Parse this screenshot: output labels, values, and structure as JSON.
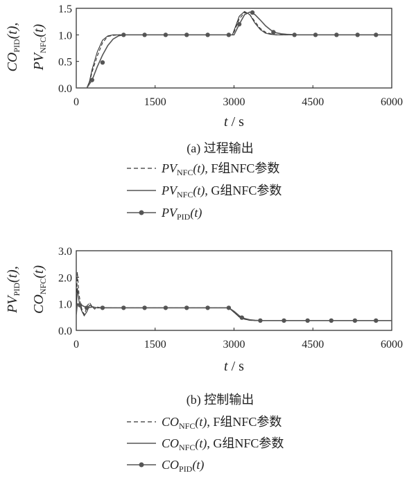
{
  "chart_data": [
    {
      "type": "line",
      "caption": "(a) 过程输出",
      "ylabel": {
        "line1": {
          "main": "CO",
          "sub": "PID",
          "arg": "(t),"
        },
        "line2": {
          "main": "PV",
          "sub": "NFC",
          "arg": "(t)"
        }
      },
      "xlabel": {
        "var": "t",
        "unit": " / s"
      },
      "xlim": [
        0,
        6000
      ],
      "ylim": [
        0,
        1.5
      ],
      "xticks": [
        "0",
        "1500",
        "3000",
        "4500",
        "6000"
      ],
      "yticks": [
        "0.0",
        "0.5",
        "1.0",
        "1.5"
      ],
      "series": [
        {
          "name": {
            "main": "PV",
            "sub": "NFC",
            "arg": "(t)",
            "rest": ", F组NFC参数"
          },
          "style": "dashed",
          "x": [
            0,
            200,
            250,
            300,
            400,
            500,
            600,
            700,
            800,
            900,
            1000,
            2970,
            3000,
            3100,
            3200,
            3300,
            3400,
            3500,
            3600,
            3700,
            3800,
            3900,
            4000,
            6000
          ],
          "y": [
            0,
            0,
            0.1,
            0.3,
            0.6,
            0.85,
            0.97,
            0.99,
            1.0,
            1.0,
            1.0,
            1.0,
            1.05,
            1.3,
            1.42,
            1.38,
            1.25,
            1.12,
            1.05,
            1.02,
            1.0,
            1.0,
            1.0,
            1.0
          ]
        },
        {
          "name": {
            "main": "PV",
            "sub": "NFC",
            "arg": "(t)",
            "rest": ", G组NFC参数"
          },
          "style": "solid",
          "x": [
            0,
            200,
            250,
            300,
            400,
            500,
            600,
            700,
            800,
            900,
            1000,
            2970,
            3000,
            3100,
            3200,
            3300,
            3400,
            3500,
            3600,
            3700,
            3800,
            3900,
            4000,
            6000
          ],
          "y": [
            0,
            0,
            0.12,
            0.35,
            0.68,
            0.9,
            0.98,
            1.0,
            1.0,
            1.0,
            1.0,
            1.0,
            1.08,
            1.35,
            1.44,
            1.38,
            1.22,
            1.1,
            1.03,
            1.01,
            1.0,
            1.0,
            1.0,
            1.0
          ]
        },
        {
          "name": {
            "main": "PV",
            "sub": "PID",
            "arg": "(t)",
            "rest": ""
          },
          "style": "marker",
          "x": [
            0,
            200,
            300,
            400,
            500,
            600,
            700,
            800,
            900,
            1300,
            1700,
            2100,
            2500,
            2900,
            2970,
            3000,
            3100,
            3200,
            3300,
            3400,
            3500,
            3600,
            3700,
            3800,
            3900,
            4000,
            4200,
            6000
          ],
          "y": [
            0,
            0,
            0.15,
            0.4,
            0.62,
            0.8,
            0.92,
            0.98,
            1.0,
            1.0,
            1.0,
            1.0,
            1.0,
            1.0,
            1.0,
            1.0,
            1.2,
            1.38,
            1.43,
            1.38,
            1.28,
            1.17,
            1.09,
            1.04,
            1.02,
            1.01,
            1.0,
            1.0
          ],
          "markers_x": [
            300,
            500,
            900,
            1300,
            1700,
            2100,
            2500,
            2900,
            3100,
            3350,
            3750,
            4150,
            4550,
            4950,
            5350,
            5700
          ],
          "markers_y": [
            0.15,
            0.48,
            1.0,
            1.0,
            1.0,
            1.0,
            1.0,
            1.0,
            1.2,
            1.42,
            1.05,
            1.0,
            1.0,
            1.0,
            1.0,
            1.0
          ]
        }
      ]
    },
    {
      "type": "line",
      "caption": "(b) 控制输出",
      "ylabel": {
        "line1": {
          "main": "PV",
          "sub": "PID",
          "arg": "(t),"
        },
        "line2": {
          "main": "CO",
          "sub": "NFC",
          "arg": "(t)"
        }
      },
      "xlabel": {
        "var": "t",
        "unit": " / s"
      },
      "xlim": [
        0,
        6000
      ],
      "ylim": [
        0,
        3.0
      ],
      "xticks": [
        "0",
        "1500",
        "3000",
        "4500",
        "6000"
      ],
      "yticks": [
        "0.0",
        "1.0",
        "2.0",
        "3.0"
      ],
      "series": [
        {
          "name": {
            "main": "CO",
            "sub": "NFC",
            "arg": "(t)",
            "rest": ", F组NFC参数"
          },
          "style": "dashed",
          "x": [
            0,
            20,
            50,
            80,
            120,
            160,
            200,
            250,
            300,
            350,
            400,
            500,
            700,
            2900,
            3000,
            3100,
            3200,
            3300,
            3400,
            3600,
            6000
          ],
          "y": [
            0.6,
            2.2,
            1.4,
            1.0,
            0.7,
            0.6,
            0.9,
            1.05,
            0.9,
            0.8,
            0.88,
            0.85,
            0.85,
            0.85,
            0.7,
            0.52,
            0.42,
            0.38,
            0.37,
            0.37,
            0.37
          ]
        },
        {
          "name": {
            "main": "CO",
            "sub": "NFC",
            "arg": "(t)",
            "rest": ", G组NFC参数"
          },
          "style": "solid",
          "x": [
            0,
            20,
            60,
            100,
            150,
            200,
            250,
            300,
            400,
            500,
            700,
            2900,
            3000,
            3100,
            3200,
            3300,
            3400,
            3600,
            6000
          ],
          "y": [
            0.6,
            1.6,
            1.0,
            0.75,
            0.55,
            0.7,
            0.95,
            0.9,
            0.85,
            0.86,
            0.85,
            0.85,
            0.68,
            0.5,
            0.42,
            0.38,
            0.37,
            0.37,
            0.37
          ]
        },
        {
          "name": {
            "main": "CO",
            "sub": "PID",
            "arg": "(t)",
            "rest": ""
          },
          "style": "marker",
          "x": [
            0,
            20,
            100,
            200,
            300,
            400,
            500,
            700,
            2900,
            3000,
            3100,
            3200,
            3300,
            3400,
            3500,
            3600,
            6000
          ],
          "y": [
            0.6,
            1.0,
            0.95,
            0.85,
            0.88,
            0.85,
            0.85,
            0.85,
            0.85,
            0.72,
            0.55,
            0.45,
            0.4,
            0.38,
            0.37,
            0.37,
            0.37
          ],
          "markers_x": [
            70,
            200,
            500,
            900,
            1300,
            1700,
            2100,
            2500,
            2900,
            3150,
            3500,
            3950,
            4400,
            4850,
            5300,
            5700
          ],
          "markers_y": [
            0.95,
            0.85,
            0.85,
            0.85,
            0.85,
            0.85,
            0.85,
            0.85,
            0.85,
            0.48,
            0.37,
            0.37,
            0.37,
            0.37,
            0.37,
            0.37
          ]
        }
      ]
    }
  ]
}
